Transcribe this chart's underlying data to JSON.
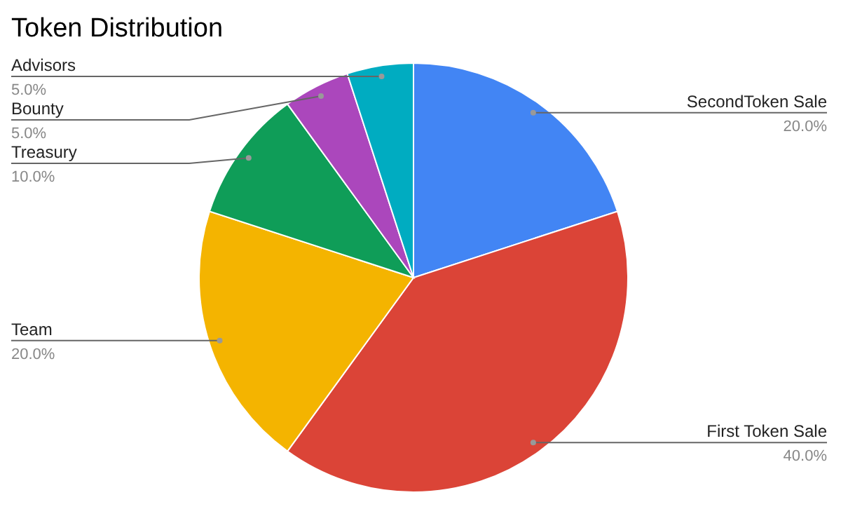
{
  "chart_data": {
    "type": "pie",
    "title": "Token Distribution",
    "categories": [
      "SecondToken Sale",
      "First Token Sale",
      "Team",
      "Treasury",
      "Bounty",
      "Advisors"
    ],
    "values": [
      20,
      40,
      20,
      10,
      5,
      5
    ],
    "colors": [
      "#4285f4",
      "#db4437",
      "#f4b400",
      "#0f9d58",
      "#ab47bc",
      "#00acc1"
    ],
    "value_labels": [
      "20.0%",
      "40.0%",
      "20.0%",
      "10.0%",
      "5.0%",
      "5.0%"
    ]
  }
}
